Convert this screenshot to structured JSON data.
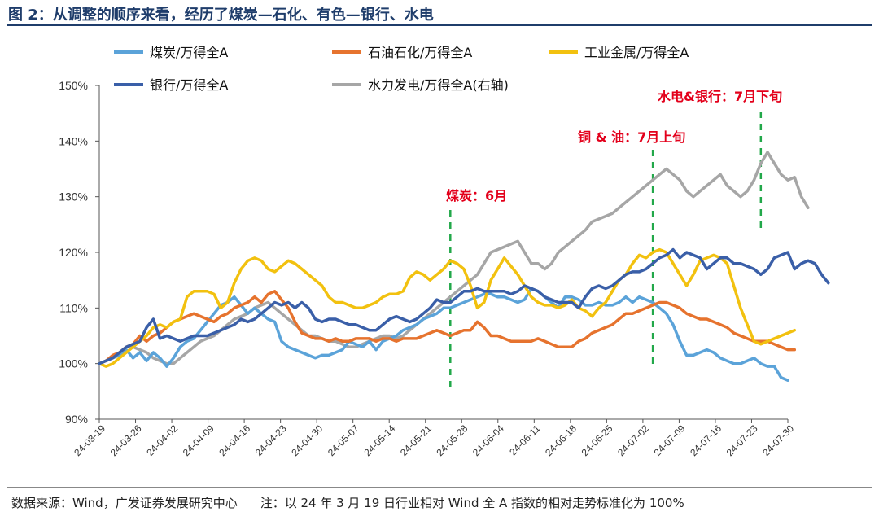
{
  "figure": {
    "title": "图 2：从调整的顺序来看，经历了煤炭—石化、有色—银行、水电",
    "source": "数据来源：Wind，广发证券发展研究中心",
    "note": "注：以 24 年 3 月 19 日行业相对 Wind 全 A 指数的相对走势标准化为 100%"
  },
  "chart_data": {
    "type": "line",
    "title": "",
    "ylim": [
      90,
      150
    ],
    "y_ticks": [
      90,
      100,
      110,
      120,
      130,
      140,
      150
    ],
    "y_tick_labels": [
      "90%",
      "100%",
      "110%",
      "120%",
      "130%",
      "140%",
      "150%"
    ],
    "x_tick_labels": [
      "24-03-19",
      "24-03-26",
      "24-04-02",
      "24-04-09",
      "24-04-16",
      "24-04-23",
      "24-04-30",
      "24-05-07",
      "24-05-14",
      "24-05-21",
      "24-05-28",
      "24-06-04",
      "24-06-11",
      "24-06-18",
      "24-06-25",
      "24-07-02",
      "24-07-09",
      "24-07-16",
      "24-07-23",
      "24-07-30"
    ],
    "legend_position": "top",
    "series": [
      {
        "name": "煤炭/万得全A",
        "color": "#5ba3d9",
        "axis": "left",
        "values": [
          100,
          100.5,
          101,
          101.5,
          102.5,
          101,
          102,
          100.5,
          102,
          101,
          99.5,
          101,
          103,
          104,
          104.5,
          106,
          107.5,
          109,
          110.5,
          111,
          112,
          110.5,
          109,
          110,
          109,
          108,
          107.5,
          104,
          103,
          102.5,
          102,
          101.5,
          101,
          101.5,
          101.5,
          102,
          102.5,
          104,
          103.5,
          103,
          104,
          102.5,
          104,
          104.5,
          105,
          106,
          106.5,
          107,
          108,
          108.5,
          109,
          110,
          110,
          110.5,
          111,
          111.5,
          112,
          112.5,
          112.5,
          112,
          112,
          111.5,
          111,
          111.5,
          113.5,
          113,
          112,
          111,
          110,
          112,
          112,
          111.5,
          110.5,
          110.5,
          111,
          110.5,
          110.5,
          111,
          112,
          111,
          112,
          111.5,
          111,
          110,
          109,
          107,
          104,
          101.5,
          101.5,
          102,
          102.5,
          102,
          101,
          100.5,
          100,
          100,
          100.5,
          101,
          100,
          99.5,
          99.5,
          97.5,
          97
        ]
      },
      {
        "name": "石油石化/万得全A",
        "color": "#e6732e",
        "axis": "left",
        "values": [
          100,
          100.5,
          101.5,
          102,
          103,
          103.5,
          105,
          104,
          105,
          105.5,
          106.5,
          107.5,
          108,
          108.5,
          109,
          108.5,
          108,
          107.5,
          108.5,
          109,
          110,
          110.5,
          111,
          112,
          111,
          112.5,
          113,
          111.5,
          110,
          107.5,
          105.5,
          105,
          104.5,
          104.5,
          104,
          104.5,
          104,
          104,
          104.5,
          104.5,
          104.5,
          104,
          104.5,
          104.5,
          104,
          104.5,
          104.5,
          104.5,
          105,
          105.5,
          106,
          105.5,
          105,
          105.5,
          106,
          106,
          107.5,
          106.5,
          105,
          105,
          104.5,
          104,
          104,
          104,
          104,
          104.5,
          104,
          103.5,
          103,
          103,
          103,
          104,
          104.5,
          105.5,
          106,
          106.5,
          107,
          108,
          109,
          109,
          109.5,
          110,
          110.5,
          111,
          111,
          110.5,
          110,
          109,
          108.5,
          108,
          108,
          107.5,
          107,
          106.5,
          105.5,
          105,
          104.5,
          104,
          104,
          104,
          103.5,
          103,
          102.5,
          102.5
        ]
      },
      {
        "name": "工业金属/万得全A",
        "color": "#f2c10f",
        "axis": "left",
        "values": [
          100,
          99.5,
          100,
          101,
          102,
          103,
          104,
          105,
          106.5,
          107,
          106.5,
          107.5,
          108,
          112,
          113,
          113,
          113,
          112.5,
          110,
          111,
          114.5,
          117,
          118.5,
          119,
          118.5,
          117,
          116.5,
          117.5,
          118.5,
          118,
          117,
          116,
          115,
          114,
          112,
          111,
          111,
          110.5,
          110,
          110,
          110.5,
          111,
          112,
          112.5,
          112.5,
          113,
          115.5,
          116.5,
          116,
          115,
          116,
          117,
          118.5,
          118,
          117,
          114,
          110,
          111,
          115,
          117,
          119,
          117.5,
          116,
          114,
          112,
          111,
          110.5,
          110.5,
          110,
          110.5,
          111.5,
          110,
          109.5,
          108.5,
          110,
          111,
          113,
          115,
          116,
          118,
          119.5,
          119,
          120,
          120.5,
          120,
          118,
          116,
          114,
          116,
          118.5,
          119,
          119.5,
          119,
          118,
          114,
          110,
          107,
          104,
          103.5,
          104,
          104.5,
          105,
          105.5,
          106
        ]
      },
      {
        "name": "银行/万得全A",
        "color": "#3a5fa8",
        "axis": "left",
        "values": [
          100,
          100.5,
          101,
          102,
          103,
          103.5,
          104,
          106.5,
          108,
          104.5,
          105,
          104.5,
          104,
          104.5,
          105,
          105,
          105,
          105.5,
          106,
          106.5,
          107,
          108,
          107.5,
          108,
          109,
          110,
          111,
          110.5,
          111,
          110,
          111,
          110,
          108,
          107.5,
          108,
          108,
          107.5,
          107,
          107,
          106.5,
          106,
          106,
          107,
          108,
          108.5,
          108,
          107.5,
          108,
          109,
          110,
          111.5,
          111,
          111,
          112,
          113,
          113,
          113.5,
          113,
          113,
          113,
          113,
          112.5,
          113,
          114,
          113.5,
          113,
          112,
          111.5,
          111,
          111,
          111,
          110,
          112,
          113.5,
          114,
          113.5,
          114,
          115,
          116,
          116.5,
          116.5,
          117,
          118,
          119,
          119.5,
          120.5,
          119,
          120,
          119.5,
          119,
          117,
          118,
          119,
          119,
          118,
          118,
          117.5,
          117,
          116,
          117,
          119,
          119.5,
          120,
          117,
          118,
          118.5,
          118,
          116,
          114.5
        ]
      },
      {
        "name": "水力发电/万得全A(右轴)",
        "color": "#a6a6a6",
        "axis": "right",
        "values": [
          100,
          100.5,
          101,
          102,
          103,
          103,
          102.5,
          102,
          101,
          100.5,
          100,
          100,
          101,
          102,
          103,
          104,
          104.5,
          105,
          106,
          107,
          108,
          108.5,
          109,
          110,
          110.5,
          111,
          110,
          109,
          108,
          107,
          106,
          105,
          105,
          104.5,
          104,
          104,
          103.5,
          103,
          103,
          103.5,
          104,
          104.5,
          105,
          105,
          104.5,
          105,
          106,
          107,
          108,
          109,
          110,
          111,
          112,
          113,
          114,
          115,
          116,
          118,
          120,
          120.5,
          121,
          121.5,
          122,
          120,
          118,
          118,
          117,
          118,
          120,
          121,
          122,
          123,
          124,
          125.5,
          126,
          126.5,
          127,
          128,
          129,
          130,
          131,
          132,
          133,
          134,
          135,
          134,
          133,
          131,
          130,
          131,
          132,
          133,
          134,
          132,
          131,
          130,
          131,
          133,
          136,
          138,
          136,
          134,
          133,
          133.5,
          130,
          128
        ]
      }
    ],
    "annotations": [
      {
        "text": "煤炭：6月",
        "x_index": 52
      },
      {
        "text": "铜 & 油：7月上旬",
        "x_index": 82
      },
      {
        "text": "水电&银行：7月下旬",
        "x_index": 98
      }
    ]
  }
}
